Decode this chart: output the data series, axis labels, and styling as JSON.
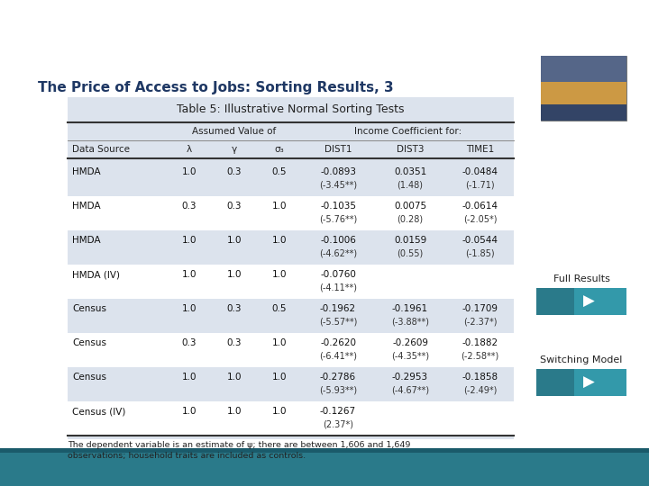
{
  "title": "The Price of Access to Jobs: Sorting Results, 3",
  "table_title": "Table 5: Illustrative Normal Sorting Tests",
  "bg_color": "#ffffff",
  "col_headers": [
    "Data Source",
    "λ",
    "γ",
    "σ₃",
    "DIST1",
    "DIST3",
    "TIME1"
  ],
  "subheader1": "Assumed Value of",
  "subheader2": "Income Coefficient for:",
  "rows": [
    [
      "HMDA",
      "1.0",
      "0.3",
      "0.5",
      "-0.0893",
      "0.0351",
      "-0.0484",
      "(-3.45**)",
      "(1.48)",
      "(-1.71)"
    ],
    [
      "HMDA",
      "0.3",
      "0.3",
      "1.0",
      "-0.1035",
      "0.0075",
      "-0.0614",
      "(-5.76**)",
      "(0.28)",
      "(-2.05*)"
    ],
    [
      "HMDA",
      "1.0",
      "1.0",
      "1.0",
      "-0.1006",
      "0.0159",
      "-0.0544",
      "(-4.62**)",
      "(0.55)",
      "(-1.85)"
    ],
    [
      "HMDA (IV)",
      "1.0",
      "1.0",
      "1.0",
      "-0.0760",
      "",
      "",
      "(-4.11**)",
      "",
      ""
    ],
    [
      "Census",
      "1.0",
      "0.3",
      "0.5",
      "-0.1962",
      "-0.1961",
      "-0.1709",
      "(-5.57**)",
      "(-3.88**)",
      "(-2.37*)"
    ],
    [
      "Census",
      "0.3",
      "0.3",
      "1.0",
      "-0.2620",
      "-0.2609",
      "-0.1882",
      "(-6.41**)",
      "(-4.35**)",
      "(-2.58**)"
    ],
    [
      "Census",
      "1.0",
      "1.0",
      "1.0",
      "-0.2786",
      "-0.2953",
      "-0.1858",
      "(-5.93**)",
      "(-4.67**)",
      "(-2.49*)"
    ],
    [
      "Census (IV)",
      "1.0",
      "1.0",
      "1.0",
      "-0.1267",
      "",
      "",
      "(2.37*)",
      "",
      ""
    ]
  ],
  "footnote": "The dependent variable is an estimate of ψ; there are between 1,606 and 1,649\nobservations; household traits are included as controls.",
  "title_color": "#1f3864",
  "table_bg": "#dce3ed",
  "row_shading_odd": "#dce3ed",
  "row_shading_even": "#ffffff",
  "button_color": "#3399aa",
  "button_dark": "#2a7a8a"
}
